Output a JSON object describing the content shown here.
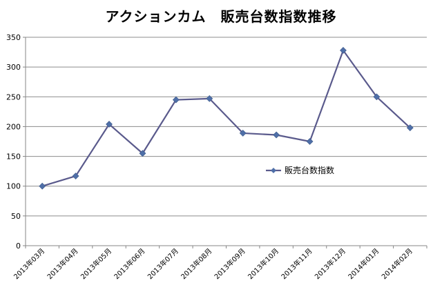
{
  "chart_data": {
    "type": "line",
    "title": "アクションカム　販売台数指数推移",
    "xlabel": "",
    "ylabel": "",
    "categories": [
      "2013年03月",
      "2013年04月",
      "2013年05月",
      "2013年06月",
      "2013年07月",
      "2013年08月",
      "2013年09月",
      "2013年10月",
      "2013年11月",
      "2013年12月",
      "2014年01月",
      "2014年02月"
    ],
    "series": [
      {
        "name": "販売台数指数",
        "values": [
          100,
          117,
          204,
          155,
          245,
          247,
          189,
          186,
          175,
          328,
          250,
          198
        ]
      }
    ],
    "ylim": [
      0,
      350
    ],
    "yticks": [
      "0",
      "50",
      "100",
      "150",
      "200",
      "250",
      "300",
      "350"
    ],
    "grid": true,
    "legend_position": "center-right",
    "colors": {
      "line": "#5a5a8c",
      "marker": "#4f6fa8",
      "grid": "#8c8c8c",
      "axis": "#868686"
    }
  }
}
